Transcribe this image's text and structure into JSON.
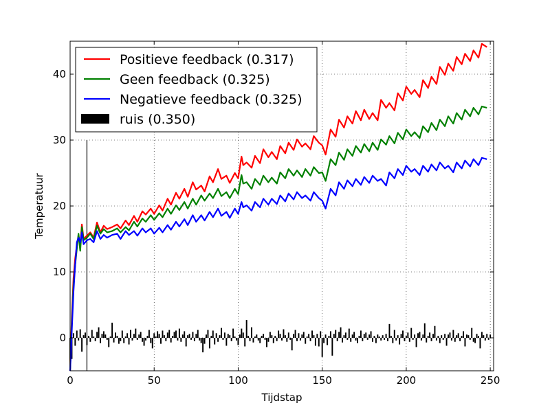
{
  "chart_data": {
    "type": "line",
    "xlabel": "Tijdstap",
    "ylabel": "Temperatuur",
    "xlim": [
      0,
      252
    ],
    "ylim": [
      -5,
      45
    ],
    "xticks": [
      0,
      50,
      100,
      150,
      200,
      250
    ],
    "yticks": [
      0,
      10,
      20,
      30,
      40
    ],
    "grid": "on (dotted)",
    "legend_position": "top-left",
    "marker": {
      "x": 10,
      "y_from": -5,
      "y_to": 30
    },
    "series": [
      {
        "name": "Positieve feedback (0.317)",
        "color": "#ff0000",
        "x": [
          0,
          1,
          2,
          3,
          4,
          5,
          6,
          7,
          8,
          10,
          12,
          14,
          16,
          18,
          20,
          22,
          25,
          28,
          30,
          33,
          35,
          38,
          40,
          43,
          45,
          48,
          50,
          53,
          55,
          58,
          60,
          63,
          65,
          68,
          70,
          73,
          75,
          78,
          80,
          83,
          85,
          88,
          90,
          93,
          95,
          98,
          100,
          102,
          103,
          105,
          108,
          110,
          113,
          115,
          118,
          120,
          123,
          125,
          128,
          130,
          133,
          135,
          138,
          140,
          143,
          145,
          148,
          150,
          152,
          155,
          158,
          160,
          163,
          165,
          168,
          170,
          173,
          175,
          178,
          180,
          183,
          185,
          188,
          190,
          193,
          195,
          198,
          200,
          203,
          205,
          208,
          210,
          213,
          215,
          218,
          220,
          223,
          225,
          228,
          230,
          233,
          235,
          238,
          240,
          243,
          245,
          248
        ],
        "y": [
          -5,
          3,
          9,
          12,
          14,
          15.5,
          14,
          17.2,
          15,
          15.5,
          16,
          15.2,
          17.5,
          16,
          17,
          16.5,
          16.8,
          17.2,
          16.6,
          17.8,
          17.1,
          18.5,
          17.6,
          19.2,
          18.7,
          19.6,
          18.8,
          20.1,
          19.3,
          21.1,
          20.2,
          22.0,
          21.1,
          22.6,
          21.4,
          23.6,
          22.5,
          23.1,
          22.2,
          24.5,
          23.6,
          25.6,
          24.1,
          24.6,
          23.5,
          25.0,
          24.2,
          27.5,
          26.2,
          26.6,
          25.8,
          27.6,
          26.5,
          28.6,
          27.4,
          28.2,
          27.1,
          29.1,
          28.0,
          29.6,
          28.5,
          30.1,
          29.0,
          29.5,
          28.6,
          30.6,
          29.6,
          29.2,
          27.8,
          31.6,
          30.5,
          33.1,
          31.9,
          33.6,
          32.5,
          34.4,
          33.0,
          34.6,
          33.2,
          34.1,
          33.0,
          36.1,
          34.9,
          35.6,
          34.5,
          37.1,
          36.0,
          38.1,
          37.0,
          37.6,
          36.5,
          39.1,
          37.9,
          39.6,
          38.5,
          41.1,
          39.9,
          41.6,
          40.5,
          42.6,
          41.5,
          43.1,
          42.0,
          43.6,
          42.5,
          44.6,
          44.1
        ]
      },
      {
        "name": "Geen feedback (0.325)",
        "color": "#008000",
        "x": [
          0,
          1,
          2,
          3,
          4,
          5,
          6,
          7,
          8,
          10,
          12,
          14,
          16,
          18,
          20,
          22,
          25,
          28,
          30,
          33,
          35,
          38,
          40,
          43,
          45,
          48,
          50,
          53,
          55,
          58,
          60,
          63,
          65,
          68,
          70,
          73,
          75,
          78,
          80,
          83,
          85,
          88,
          90,
          93,
          95,
          98,
          100,
          102,
          103,
          105,
          108,
          110,
          113,
          115,
          118,
          120,
          123,
          125,
          128,
          130,
          133,
          135,
          138,
          140,
          143,
          145,
          148,
          150,
          152,
          155,
          158,
          160,
          163,
          165,
          168,
          170,
          173,
          175,
          178,
          180,
          183,
          185,
          188,
          190,
          193,
          195,
          198,
          200,
          203,
          205,
          208,
          210,
          213,
          215,
          218,
          220,
          223,
          225,
          228,
          230,
          233,
          235,
          238,
          240,
          243,
          245,
          248
        ],
        "y": [
          -5,
          2,
          8,
          11,
          13.5,
          15.8,
          13.2,
          16.8,
          14.8,
          15.2,
          15.8,
          15.0,
          17.0,
          15.8,
          16.5,
          16.0,
          16.2,
          16.6,
          16.0,
          16.8,
          16.3,
          17.6,
          16.9,
          18.1,
          17.6,
          18.6,
          17.9,
          18.9,
          18.3,
          19.6,
          18.8,
          20.1,
          19.4,
          20.6,
          19.6,
          21.1,
          20.2,
          21.6,
          20.8,
          21.9,
          21.2,
          22.6,
          21.5,
          22.1,
          21.2,
          22.6,
          21.8,
          24.7,
          23.4,
          23.6,
          22.6,
          24.1,
          23.2,
          24.6,
          23.6,
          24.3,
          23.4,
          25.1,
          24.2,
          25.6,
          24.6,
          25.4,
          24.4,
          25.6,
          24.6,
          25.9,
          25.0,
          25.1,
          23.8,
          27.1,
          26.2,
          28.1,
          27.0,
          28.6,
          27.6,
          29.1,
          28.1,
          29.4,
          28.3,
          29.6,
          28.5,
          30.1,
          29.3,
          30.6,
          29.5,
          31.1,
          30.1,
          31.6,
          30.6,
          31.2,
          30.3,
          32.1,
          31.2,
          32.6,
          31.5,
          33.1,
          32.1,
          33.6,
          32.5,
          34.1,
          33.1,
          34.6,
          33.6,
          34.9,
          33.9,
          35.1,
          34.9
        ]
      },
      {
        "name": "Negatieve feedback (0.325)",
        "color": "#0000ff",
        "x": [
          0,
          1,
          2,
          3,
          4,
          5,
          6,
          7,
          8,
          10,
          12,
          14,
          16,
          18,
          20,
          22,
          25,
          28,
          30,
          33,
          35,
          38,
          40,
          43,
          45,
          48,
          50,
          53,
          55,
          58,
          60,
          63,
          65,
          68,
          70,
          73,
          75,
          78,
          80,
          83,
          85,
          88,
          90,
          93,
          95,
          98,
          100,
          102,
          103,
          105,
          108,
          110,
          113,
          115,
          118,
          120,
          123,
          125,
          128,
          130,
          133,
          135,
          138,
          140,
          143,
          145,
          148,
          150,
          152,
          155,
          158,
          160,
          163,
          165,
          168,
          170,
          173,
          175,
          178,
          180,
          183,
          185,
          188,
          190,
          193,
          195,
          198,
          200,
          203,
          205,
          208,
          210,
          213,
          215,
          218,
          220,
          223,
          225,
          228,
          230,
          233,
          235,
          238,
          240,
          243,
          245,
          248
        ],
        "y": [
          -5,
          1,
          7,
          11,
          14.5,
          15.2,
          14.5,
          16.0,
          14.2,
          14.8,
          15.0,
          14.5,
          16.2,
          15.0,
          15.6,
          15.2,
          15.6,
          15.8,
          15.0,
          16.2,
          15.6,
          16.2,
          15.5,
          16.6,
          16.0,
          16.6,
          15.8,
          16.7,
          16.0,
          17.1,
          16.4,
          17.6,
          16.9,
          18.0,
          17.1,
          18.6,
          17.6,
          18.6,
          17.8,
          19.1,
          18.3,
          19.6,
          18.5,
          19.1,
          18.2,
          19.6,
          18.8,
          20.6,
          19.8,
          20.1,
          19.3,
          20.6,
          19.8,
          21.1,
          20.2,
          21.1,
          20.3,
          21.6,
          20.7,
          21.9,
          21.0,
          22.1,
          21.2,
          21.6,
          20.8,
          22.1,
          21.2,
          20.8,
          19.6,
          22.6,
          21.6,
          23.6,
          22.6,
          23.9,
          23.0,
          24.1,
          23.2,
          24.4,
          23.5,
          24.6,
          23.8,
          24.1,
          23.1,
          25.1,
          24.2,
          25.6,
          24.7,
          26.1,
          25.2,
          25.6,
          24.7,
          26.1,
          25.2,
          26.3,
          25.4,
          26.6,
          25.7,
          26.1,
          25.1,
          26.6,
          25.7,
          26.9,
          26.0,
          27.1,
          26.2,
          27.3,
          27.1
        ]
      }
    ],
    "noise": {
      "name": "ruis (0.350)",
      "color": "#000000",
      "type": "bar",
      "x_start": 0,
      "values": [
        -5.0,
        -3.2,
        0.7,
        -1.2,
        1.1,
        -0.4,
        1.3,
        -2.1,
        0.4,
        0.8,
        -1.1,
        0.3,
        -0.6,
        1.2,
        0.2,
        -0.5,
        0.9,
        1.6,
        -0.8,
        0.6,
        1.0,
        0.5,
        -0.3,
        -1.4,
        0.2,
        2.3,
        -0.7,
        0.8,
        0.3,
        -0.9,
        -0.5,
        1.1,
        -0.8,
        0.2,
        0.7,
        -1.0,
        1.2,
        -0.4,
        0.6,
        1.4,
        -0.3,
        0.5,
        0.9,
        -0.6,
        -1.2,
        -0.4,
        0.3,
        1.2,
        -0.8,
        -1.6,
        0.7,
        0.2,
        1.0,
        0.6,
        -0.9,
        1.1,
        0.4,
        -0.5,
        0.8,
        1.2,
        -0.7,
        0.3,
        0.9,
        1.1,
        -0.4,
        1.4,
        -0.6,
        0.5,
        1.0,
        -1.3,
        0.4,
        0.6,
        -0.3,
        0.9,
        -0.5,
        0.6,
        1.2,
        -0.4,
        -0.8,
        -2.2,
        -0.9,
        0.5,
        1.2,
        -1.6,
        0.3,
        1.1,
        -1.0,
        0.7,
        -0.6,
        0.4,
        1.5,
        -0.3,
        0.8,
        -1.2,
        0.6,
        0.4,
        -0.5,
        1.4,
        0.2,
        -0.4,
        -1.1,
        0.5,
        1.4,
        0.8,
        -1.3,
        2.7,
        0.3,
        -0.5,
        1.6,
        -0.7,
        0.2,
        0.5,
        -0.4,
        -0.8,
        0.3,
        0.6,
        -0.3,
        -1.4,
        -0.6,
        0.9,
        0.4,
        -0.8,
        0.3,
        -0.5,
        1.1,
        0.6,
        -0.4,
        1.3,
        0.4,
        -0.6,
        0.8,
        -0.3,
        -1.9,
        0.6,
        1.2,
        -0.5,
        0.7,
        -0.4,
        0.5,
        0.9,
        -0.9,
        0.2,
        0.6,
        -0.5,
        1.1,
        0.4,
        -1.2,
        0.6,
        -1.3,
        1.0,
        -2.9,
        -0.8,
        0.5,
        -1.1,
        0.3,
        1.0,
        -2.7,
        0.6,
        1.2,
        -0.5,
        0.9,
        1.6,
        -0.7,
        0.4,
        0.8,
        -0.3,
        1.4,
        -0.6,
        0.5,
        0.9,
        -0.4,
        -0.8,
        0.3,
        1.1,
        -0.5,
        0.6,
        0.8,
        -0.3,
        0.5,
        1.0,
        -0.6,
        0.3,
        -0.8,
        0.5,
        0.2,
        -0.4,
        0.4,
        -0.3,
        0.6,
        -0.5,
        2.1,
        0.3,
        -0.8,
        1.2,
        -0.4,
        0.4,
        -1.0,
        0.6,
        1.1,
        -0.5,
        0.3,
        0.8,
        -0.6,
        1.5,
        -0.3,
        0.5,
        -1.4,
        0.7,
        0.9,
        -0.4,
        0.5,
        2.2,
        -0.7,
        0.3,
        0.8,
        -0.5,
        0.6,
        1.8,
        -0.4,
        0.3,
        -0.8,
        0.4,
        -0.3,
        0.6,
        -1.2,
        0.5,
        0.8,
        -0.4,
        1.2,
        -0.6,
        0.4,
        0.7,
        -0.5,
        0.3,
        1.0,
        -1.3,
        0.5,
        0.4,
        -0.3,
        1.5,
        -0.6,
        -0.8,
        0.6,
        0.3,
        -1.6,
        0.9,
        0.4,
        -0.4,
        0.6,
        -0.3,
        0.5
      ]
    }
  }
}
